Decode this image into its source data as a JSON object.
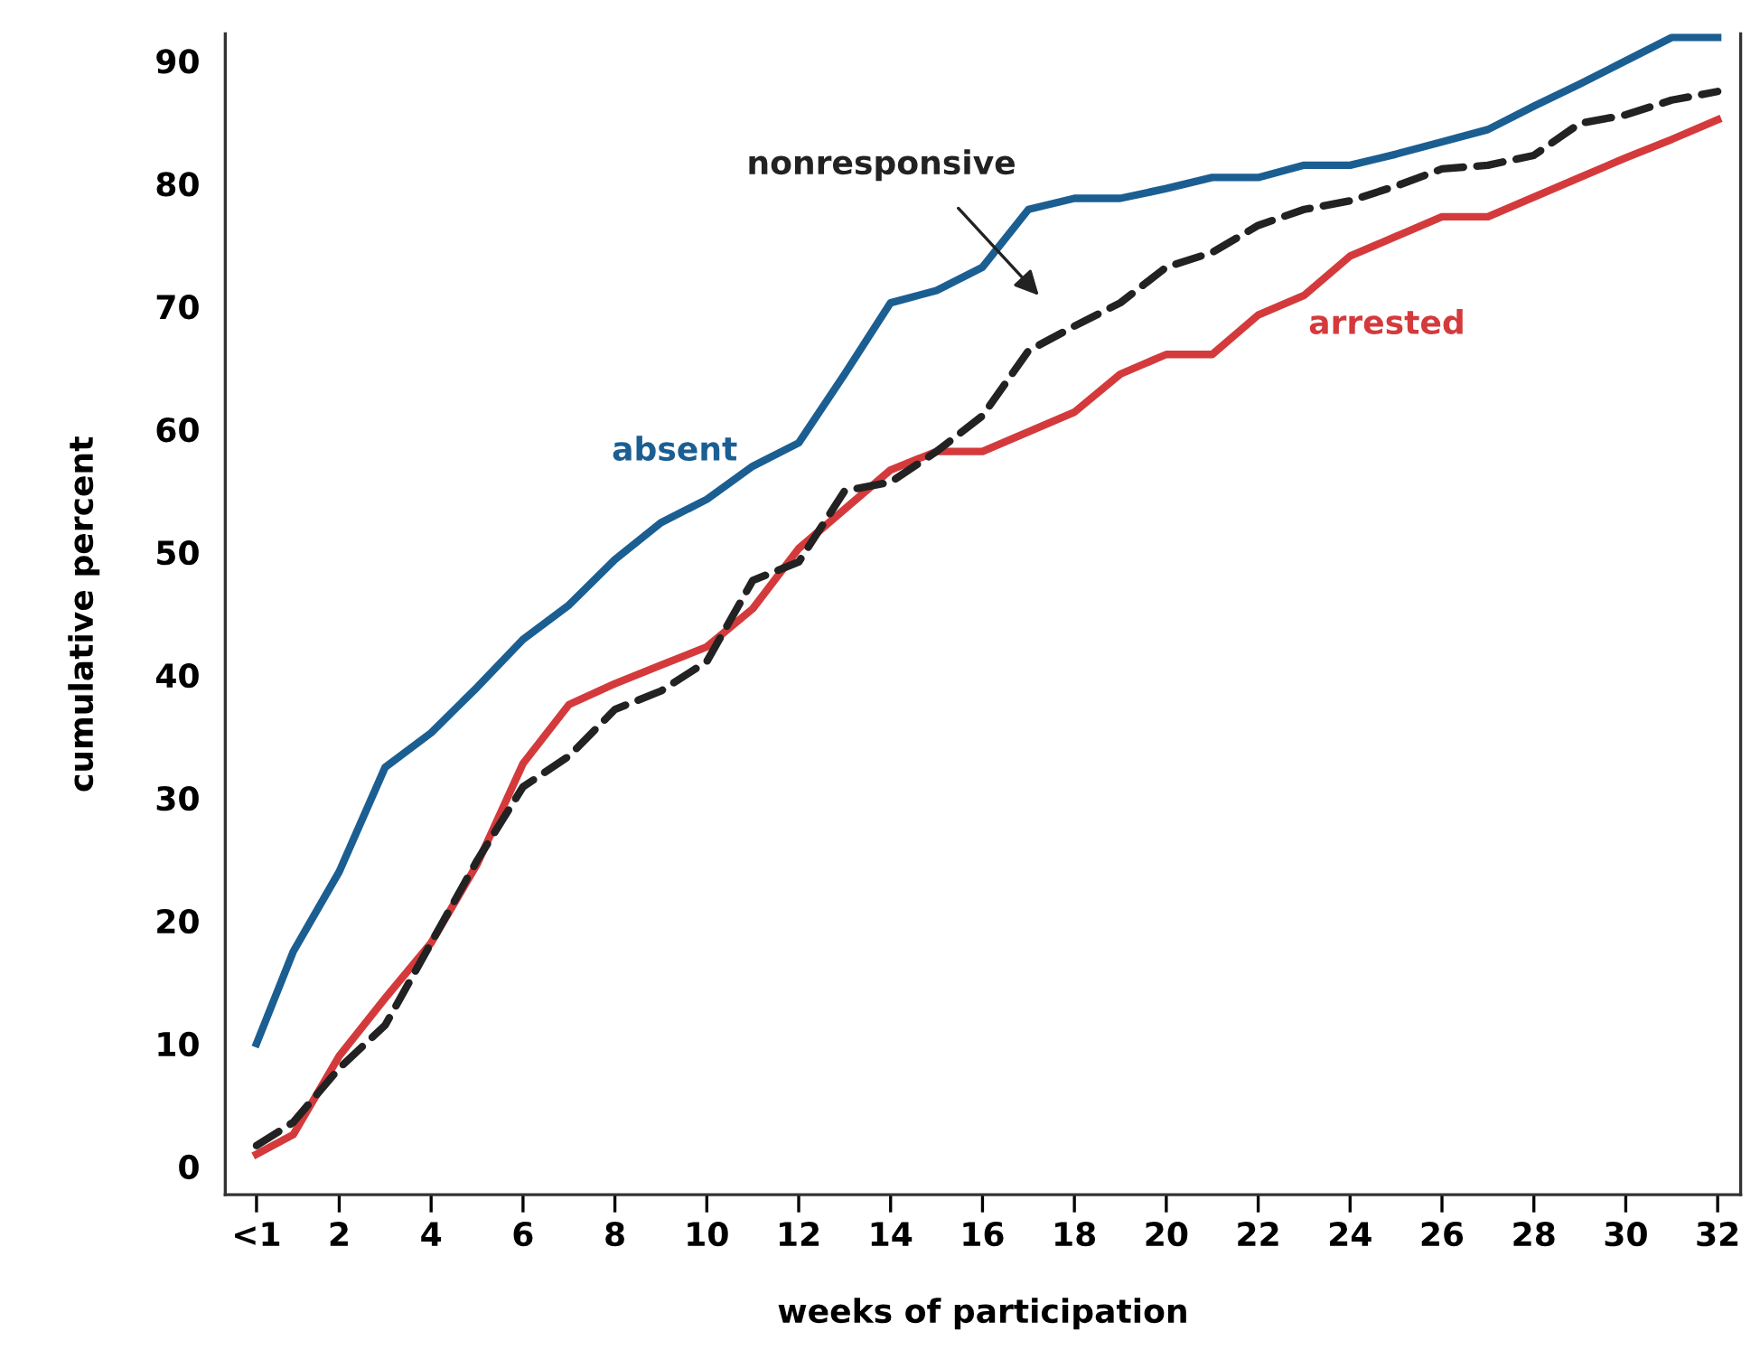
{
  "chart_data": {
    "type": "line",
    "xlabel": "weeks of participation",
    "ylabel": "cumulative percent",
    "x": [
      0.2,
      1,
      2,
      3,
      4,
      5,
      6,
      7,
      8,
      9,
      10,
      11,
      12,
      13,
      14,
      15,
      16,
      17,
      18,
      19,
      20,
      21,
      22,
      23,
      24,
      25,
      26,
      27,
      28,
      29,
      30,
      31,
      32
    ],
    "series": [
      {
        "name": "absent",
        "color": "#1b5e92",
        "line_style": "solid",
        "values": [
          10,
          17.5,
          24,
          32.5,
          35.3,
          39,
          42.9,
          45.7,
          49.4,
          52.4,
          54.3,
          57,
          58.9,
          64.5,
          70.3,
          71.3,
          73.2,
          77.9,
          78.8,
          78.8,
          79.6,
          80.5,
          80.5,
          81.5,
          81.5,
          82.4,
          83.4,
          84.4,
          86.3,
          88.1,
          90,
          91.9,
          91.9
        ]
      },
      {
        "name": "arrested",
        "color": "#d43a3c",
        "line_style": "solid",
        "values": [
          1,
          2.6,
          9,
          13.7,
          18.2,
          24.6,
          32.8,
          37.6,
          39.3,
          40.8,
          42.3,
          45.4,
          50.3,
          53.5,
          56.7,
          58.2,
          58.2,
          59.8,
          61.4,
          64.5,
          66.1,
          66.1,
          69.3,
          70.9,
          74.1,
          75.7,
          77.3,
          77.3,
          78.9,
          80.5,
          82.1,
          83.6,
          85.2
        ]
      },
      {
        "name": "nonresponsive",
        "color": "#222222",
        "line_style": "dashed",
        "values": [
          1.7,
          3.6,
          8,
          11.5,
          18.2,
          24.9,
          30.9,
          33.4,
          37.2,
          38.7,
          41.1,
          47.7,
          49.2,
          55,
          55.7,
          58.2,
          61.1,
          66.4,
          68.4,
          70.3,
          73.2,
          74.4,
          76.6,
          77.9,
          78.6,
          79.8,
          81.2,
          81.5,
          82.3,
          84.9,
          85.6,
          86.8,
          87.5
        ]
      }
    ],
    "xlim": [
      -0.48,
      32.5
    ],
    "ylim": [
      -2.3,
      92.2
    ],
    "xticks": [
      {
        "value": 0.2,
        "label": "<1"
      },
      2,
      4,
      6,
      8,
      10,
      12,
      14,
      16,
      18,
      20,
      22,
      24,
      26,
      28,
      30,
      32
    ],
    "yticks": [
      0,
      10,
      20,
      30,
      40,
      50,
      60,
      70,
      80,
      90
    ],
    "grid": false,
    "legend": false,
    "marker": "none"
  }
}
